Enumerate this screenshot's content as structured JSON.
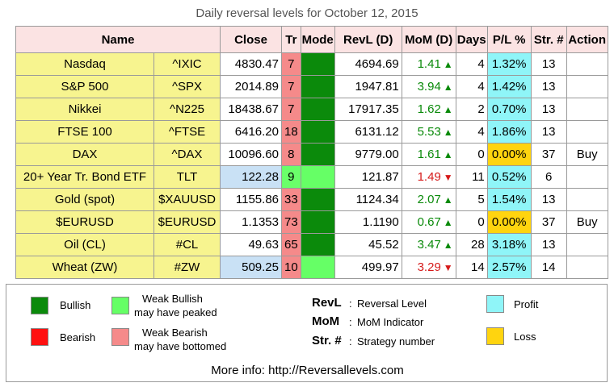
{
  "page_title": "Daily reversal levels for October 12, 2015",
  "columns": [
    "Name",
    "Close",
    "Tr",
    "Mode",
    "RevL (D)",
    "MoM (D)",
    "Days",
    "P/L %",
    "Str. #",
    "Action"
  ],
  "rows": [
    {
      "name": "Nasdaq",
      "symbol": "^IXIC",
      "close": "4830.47",
      "tr": "7",
      "revl": "4694.69",
      "mom": "1.41",
      "days": "4",
      "pl": "1.32%",
      "str": "13",
      "action": ""
    },
    {
      "name": "S&P 500",
      "symbol": "^SPX",
      "close": "2014.89",
      "tr": "7",
      "revl": "1947.81",
      "mom": "3.94",
      "days": "4",
      "pl": "1.42%",
      "str": "13",
      "action": ""
    },
    {
      "name": "Nikkei",
      "symbol": "^N225",
      "close": "18438.67",
      "tr": "7",
      "revl": "17917.35",
      "mom": "1.62",
      "days": "2",
      "pl": "0.70%",
      "str": "13",
      "action": ""
    },
    {
      "name": "FTSE 100",
      "symbol": "^FTSE",
      "close": "6416.20",
      "tr": "18",
      "revl": "6131.12",
      "mom": "5.53",
      "days": "4",
      "pl": "1.86%",
      "str": "13",
      "action": ""
    },
    {
      "name": "DAX",
      "symbol": "^DAX",
      "close": "10096.60",
      "tr": "8",
      "revl": "9779.00",
      "mom": "1.61",
      "days": "0",
      "pl": "0.00%",
      "str": "37",
      "action": "Buy"
    },
    {
      "name": "20+ Year Tr. Bond ETF",
      "symbol": "TLT",
      "close": "122.28",
      "tr": "9",
      "revl": "121.87",
      "mom": "1.49",
      "days": "11",
      "pl": "0.52%",
      "str": "6",
      "action": ""
    },
    {
      "name": "Gold (spot)",
      "symbol": "$XAUUSD",
      "close": "1155.86",
      "tr": "33",
      "revl": "1124.34",
      "mom": "2.07",
      "days": "5",
      "pl": "1.54%",
      "str": "13",
      "action": ""
    },
    {
      "name": "$EURUSD",
      "symbol": "$EURUSD",
      "close": "1.1353",
      "tr": "73",
      "revl": "1.1190",
      "mom": "0.67",
      "days": "0",
      "pl": "0.00%",
      "str": "37",
      "action": "Buy"
    },
    {
      "name": "Oil (CL)",
      "symbol": "#CL",
      "close": "49.63",
      "tr": "65",
      "revl": "45.52",
      "mom": "3.47",
      "days": "28",
      "pl": "3.18%",
      "str": "13",
      "action": ""
    },
    {
      "name": "Wheat (ZW)",
      "symbol": "#ZW",
      "close": "509.25",
      "tr": "10",
      "revl": "499.97",
      "mom": "3.29",
      "days": "14",
      "pl": "2.57%",
      "str": "14",
      "action": ""
    }
  ],
  "legend": {
    "bullish": "Bullish",
    "weak_bullish_1": "Weak Bullish",
    "weak_bullish_2": "may have peaked",
    "bearish": "Bearish",
    "weak_bearish_1": "Weak Bearish",
    "weak_bearish_2": "may have bottomed",
    "revl_term": "RevL",
    "revl_def": "Reversal Level",
    "mom_term": "MoM",
    "mom_def": "MoM Indicator",
    "str_term": "Str. #",
    "str_def": "Strategy number",
    "colon": ":",
    "profit": "Profit",
    "loss": "Loss",
    "more_info": "More info: http://Reversallevels.com"
  },
  "colors": {
    "bullish": "#0b8a0b",
    "weak_bullish": "#66ff66",
    "bearish": "#ff1010",
    "weak_bearish": "#f58a8a",
    "profit": "#8ff5f8",
    "loss": "#ffd40f",
    "header_bg": "#fbe3e3",
    "name_bg": "#f7f48f"
  },
  "arrows": {
    "up": "▲",
    "down": "▼"
  }
}
